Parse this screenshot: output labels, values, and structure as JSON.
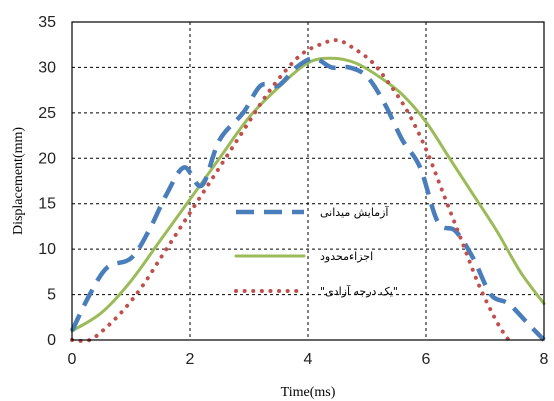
{
  "chart_data": {
    "type": "line",
    "xlabel": "Time(ms)",
    "ylabel": "Displacement(mm)",
    "xlim": [
      0,
      8
    ],
    "ylim": [
      0,
      35
    ],
    "xticks": [
      "0",
      "2",
      "4",
      "6",
      "8"
    ],
    "yticks": [
      "0",
      "5",
      "10",
      "15",
      "20",
      "25",
      "30",
      "35"
    ],
    "grid": true,
    "legend_position": "center",
    "series": [
      {
        "name": "آزمایش میدانی",
        "color": "#4a7ebb",
        "style": "dashed",
        "x": [
          0,
          0.3,
          0.6,
          1.0,
          1.3,
          1.6,
          1.9,
          2.2,
          2.5,
          2.9,
          3.2,
          3.5,
          3.8,
          4.1,
          4.4,
          4.7,
          5.0,
          5.3,
          5.6,
          5.9,
          6.2,
          6.5,
          6.8,
          7.1,
          7.4,
          7.7,
          8.0
        ],
        "y": [
          1,
          5,
          8,
          9,
          12,
          16,
          19,
          17,
          22,
          25,
          28,
          28,
          30,
          31,
          30,
          30,
          29,
          26,
          22,
          19,
          13,
          12,
          9,
          5,
          4,
          2,
          0
        ]
      },
      {
        "name": "اجزاءمحدود",
        "color": "#9bbb59",
        "style": "solid",
        "x": [
          0,
          0.5,
          1.0,
          1.5,
          2.0,
          2.5,
          3.0,
          3.5,
          4.0,
          4.4,
          4.8,
          5.2,
          5.6,
          6.0,
          6.4,
          6.8,
          7.2,
          7.6,
          8.0
        ],
        "y": [
          1,
          3,
          6.5,
          11,
          15.5,
          20,
          24.5,
          27.8,
          30.5,
          31,
          30.5,
          29,
          27,
          24,
          20,
          16,
          12,
          7.5,
          4
        ]
      },
      {
        "name": "\"یک درجه آزادی\"",
        "color": "#c0504d",
        "style": "dotted",
        "x": [
          0,
          0.3,
          0.6,
          0.9,
          1.2,
          1.5,
          1.8,
          2.1,
          2.4,
          2.7,
          3.0,
          3.3,
          3.6,
          3.9,
          4.2,
          4.5,
          4.8,
          5.1,
          5.4,
          5.7,
          6.0,
          6.3,
          6.6,
          6.9,
          7.2,
          7.4
        ],
        "y": [
          0,
          0,
          1.5,
          3.5,
          6,
          9,
          12,
          15,
          18,
          21,
          24,
          27,
          29.5,
          31.5,
          32.5,
          33,
          32,
          30.5,
          28,
          25,
          21,
          16,
          11,
          6,
          2,
          0
        ]
      }
    ]
  }
}
